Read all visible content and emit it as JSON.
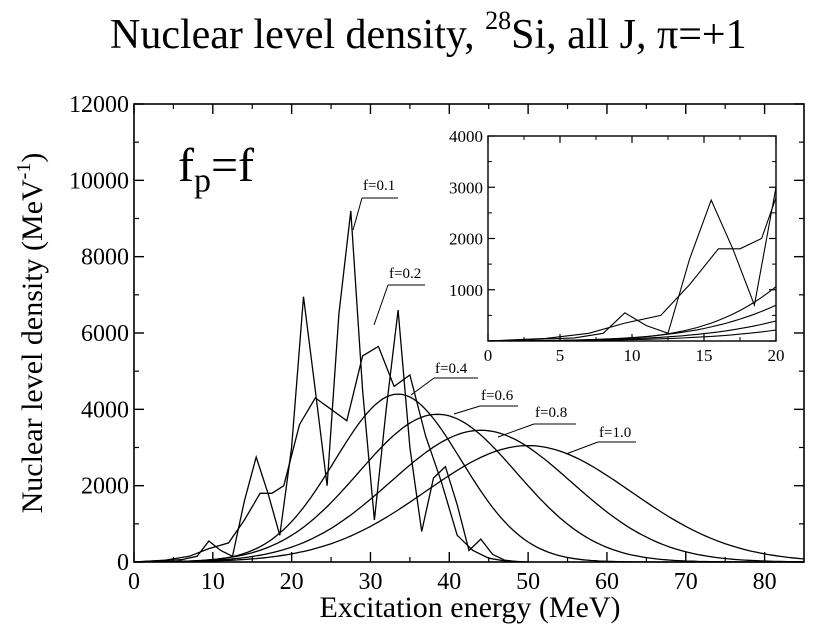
{
  "title": {
    "prefix": "Nuclear level density, ",
    "mass_number": "28",
    "suffix": "Si, all J, π=+1"
  },
  "annotation": {
    "f": "f",
    "p": "p",
    "equals_f": "=f"
  },
  "chart_data": {
    "type": "line",
    "xlabel": "Excitation energy (MeV)",
    "ylabel": "Nuclear level density (MeV",
    "ylabel_sup": "-1",
    "ylabel_end": ")",
    "xlim": [
      0,
      85
    ],
    "ylim": [
      0,
      12000
    ],
    "xticks": [
      0,
      10,
      20,
      30,
      40,
      50,
      60,
      70,
      80
    ],
    "yticks": [
      0,
      2000,
      4000,
      6000,
      8000,
      10000,
      12000
    ],
    "series": [
      {
        "name": "f=0.1",
        "x": [
          0,
          2,
          4,
          6,
          8,
          9.5,
          11,
          12.5,
          14,
          15.5,
          17,
          18.5,
          20,
          21.5,
          23,
          24.5,
          26,
          27.5,
          29,
          30.5,
          32,
          33.5,
          35,
          36.5,
          38,
          39.5,
          41,
          42.5,
          44,
          45.5,
          47,
          49
        ],
        "values": [
          0,
          20,
          40,
          60,
          150,
          550,
          300,
          150,
          1600,
          2750,
          1800,
          700,
          3000,
          6950,
          4500,
          2000,
          6500,
          9200,
          4500,
          1100,
          4000,
          6600,
          3000,
          800,
          2200,
          2500,
          1500,
          300,
          600,
          200,
          50,
          0
        ]
      },
      {
        "name": "f=0.2",
        "x": [
          0,
          4,
          7,
          9.5,
          12,
          14,
          16,
          17.5,
          19,
          21,
          23,
          25,
          27,
          29,
          31,
          33,
          35,
          37,
          39,
          41,
          43,
          45,
          47,
          50
        ],
        "values": [
          0,
          50,
          150,
          350,
          500,
          1100,
          1800,
          1800,
          2000,
          3600,
          4300,
          4000,
          3700,
          5400,
          5650,
          4600,
          4900,
          3300,
          2100,
          700,
          300,
          100,
          30,
          0
        ]
      },
      {
        "name": "f=0.4",
        "mu": 33.5,
        "sigma": 8.0,
        "peak": 4400
      },
      {
        "name": "f=0.6",
        "mu": 38.5,
        "sigma": 10.0,
        "peak": 3870
      },
      {
        "name": "f=0.8",
        "mu": 44.0,
        "sigma": 11.5,
        "peak": 3450
      },
      {
        "name": "f=1.0",
        "mu": 50.0,
        "sigma": 13.0,
        "peak": 3050
      }
    ],
    "labels": [
      "f=0.1",
      "f=0.2",
      "f=0.4",
      "f=0.6",
      "f=0.8",
      "f=1.0"
    ],
    "inset": {
      "xlim": [
        0,
        20
      ],
      "ylim": [
        0,
        4000
      ],
      "xticks": [
        0,
        5,
        10,
        15,
        20
      ],
      "yticks": [
        1000,
        2000,
        3000,
        4000
      ],
      "ytick_zero": "0"
    }
  }
}
